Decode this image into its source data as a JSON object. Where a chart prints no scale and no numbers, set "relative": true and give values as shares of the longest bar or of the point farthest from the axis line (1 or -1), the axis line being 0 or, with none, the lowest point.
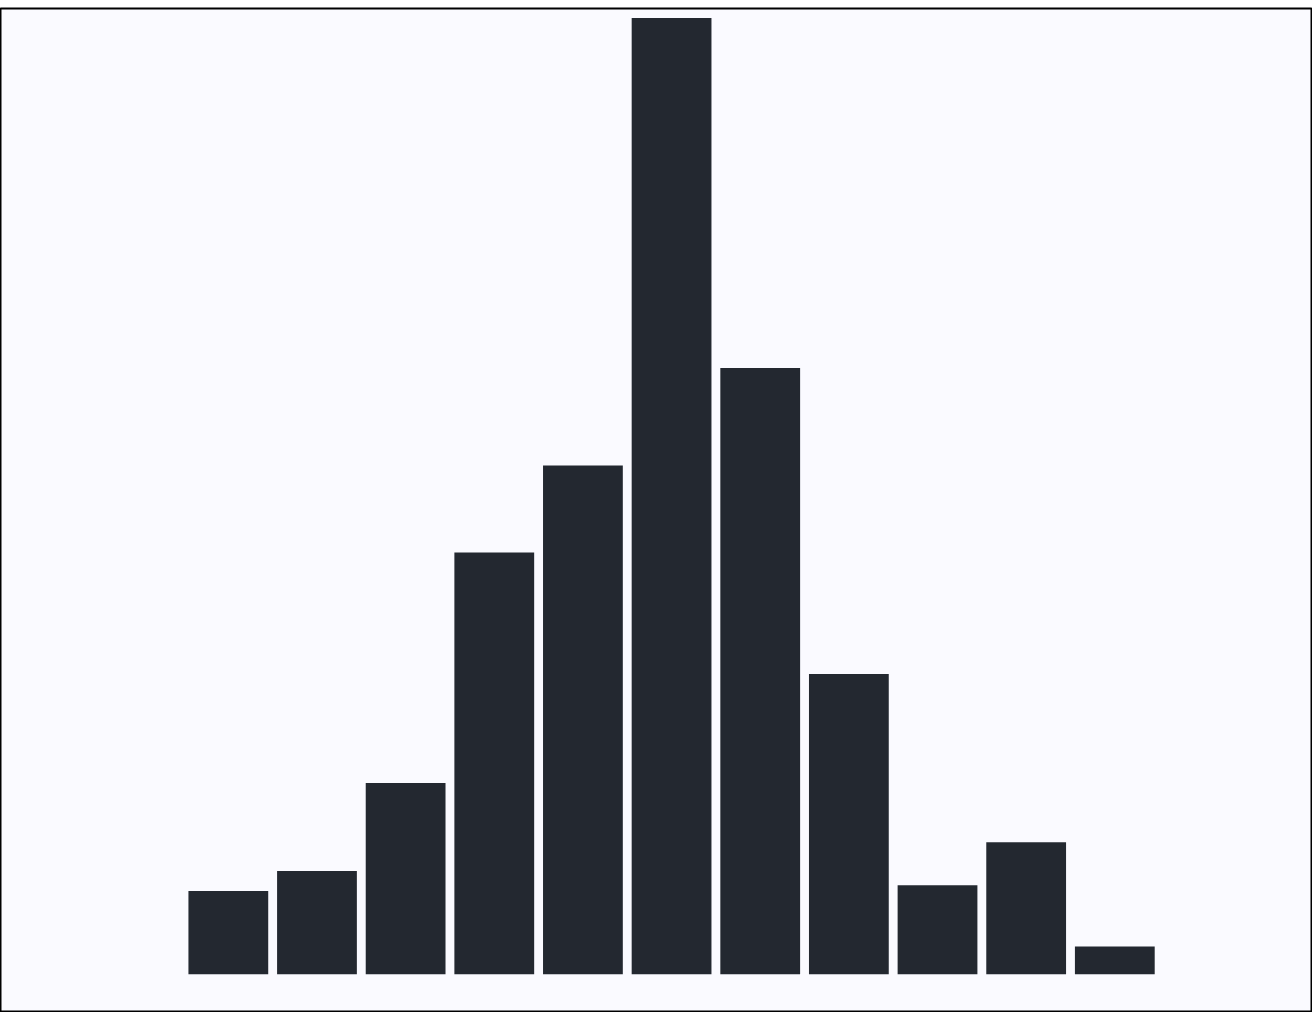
{
  "chart_data": {
    "type": "bar",
    "relative": true,
    "categories": [
      null,
      null,
      null,
      null,
      null,
      null,
      null,
      null,
      null,
      null,
      null
    ],
    "values": [
      0.087,
      0.108,
      0.2,
      0.441,
      0.532,
      1,
      0.634,
      0.314,
      0.093,
      0.138,
      0.029
    ],
    "color": "#232830",
    "grid": false
  }
}
